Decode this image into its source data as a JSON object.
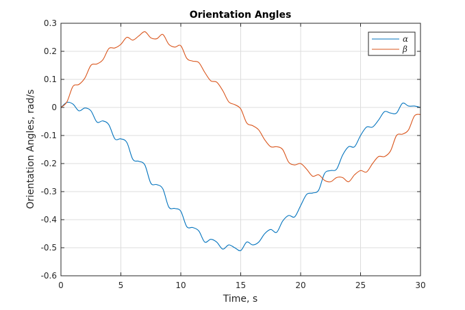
{
  "chart_data": {
    "type": "line",
    "title": "Orientation Angles",
    "xlabel": "Time, s",
    "ylabel": "Orientation Angles, rad/s",
    "xlim": [
      0,
      30
    ],
    "ylim": [
      -0.6,
      0.3
    ],
    "xticks": [
      "0",
      "5",
      "10",
      "15",
      "20",
      "25",
      "30"
    ],
    "yticks": [
      "0.3",
      "0.2",
      "0.1",
      "0",
      "-0.1",
      "-0.2",
      "-0.3",
      "-0.4",
      "-0.5",
      "-0.6"
    ],
    "grid": true,
    "legend_position": "top-right",
    "series": [
      {
        "name": "α",
        "color": "#0072BD",
        "x": [
          0,
          0.5,
          1,
          1.5,
          2,
          2.5,
          3,
          3.5,
          4,
          4.5,
          5,
          5.5,
          6,
          6.5,
          7,
          7.5,
          8,
          8.5,
          9,
          9.5,
          10,
          10.5,
          11,
          11.5,
          12,
          12.5,
          13,
          13.5,
          14,
          14.5,
          15,
          15.5,
          16,
          16.5,
          17,
          17.5,
          18,
          18.5,
          19,
          19.5,
          20,
          20.5,
          21,
          21.5,
          22,
          22.5,
          23,
          23.5,
          24,
          24.5,
          25,
          25.5,
          26,
          26.5,
          27,
          27.5,
          28,
          28.5,
          29,
          29.5,
          30
        ],
        "y": [
          0,
          0.018,
          0.012,
          -0.012,
          -0.002,
          -0.012,
          -0.052,
          -0.048,
          -0.062,
          -0.112,
          -0.112,
          -0.125,
          -0.185,
          -0.192,
          -0.205,
          -0.27,
          -0.275,
          -0.29,
          -0.355,
          -0.36,
          -0.37,
          -0.425,
          -0.428,
          -0.44,
          -0.48,
          -0.47,
          -0.48,
          -0.505,
          -0.49,
          -0.5,
          -0.51,
          -0.48,
          -0.49,
          -0.48,
          -0.45,
          -0.435,
          -0.445,
          -0.405,
          -0.385,
          -0.39,
          -0.35,
          -0.31,
          -0.305,
          -0.295,
          -0.235,
          -0.225,
          -0.22,
          -0.17,
          -0.14,
          -0.14,
          -0.1,
          -0.07,
          -0.07,
          -0.045,
          -0.015,
          -0.02,
          -0.02,
          0.015,
          0.005,
          0.005,
          0
        ]
      },
      {
        "name": "β",
        "color": "#D95319",
        "x": [
          0,
          0.5,
          1,
          1.5,
          2,
          2.5,
          3,
          3.5,
          4,
          4.5,
          5,
          5.5,
          6,
          6.5,
          7,
          7.5,
          8,
          8.5,
          9,
          9.5,
          10,
          10.5,
          11,
          11.5,
          12,
          12.5,
          13,
          13.5,
          14,
          14.5,
          15,
          15.5,
          16,
          16.5,
          17,
          17.5,
          18,
          18.5,
          19,
          19.5,
          20,
          20.5,
          21,
          21.5,
          22,
          22.5,
          23,
          23.5,
          24,
          24.5,
          25,
          25.5,
          26,
          26.5,
          27,
          27.5,
          28,
          28.5,
          29,
          29.5,
          30
        ],
        "y": [
          0,
          0.02,
          0.075,
          0.082,
          0.105,
          0.15,
          0.155,
          0.17,
          0.21,
          0.212,
          0.225,
          0.25,
          0.24,
          0.255,
          0.27,
          0.248,
          0.245,
          0.26,
          0.225,
          0.215,
          0.22,
          0.175,
          0.165,
          0.16,
          0.125,
          0.095,
          0.09,
          0.06,
          0.02,
          0.01,
          -0.005,
          -0.055,
          -0.065,
          -0.08,
          -0.115,
          -0.14,
          -0.14,
          -0.15,
          -0.195,
          -0.205,
          -0.2,
          -0.22,
          -0.245,
          -0.24,
          -0.26,
          -0.265,
          -0.25,
          -0.25,
          -0.265,
          -0.24,
          -0.225,
          -0.23,
          -0.2,
          -0.175,
          -0.175,
          -0.155,
          -0.1,
          -0.095,
          -0.08,
          -0.03,
          -0.025
        ]
      }
    ]
  }
}
